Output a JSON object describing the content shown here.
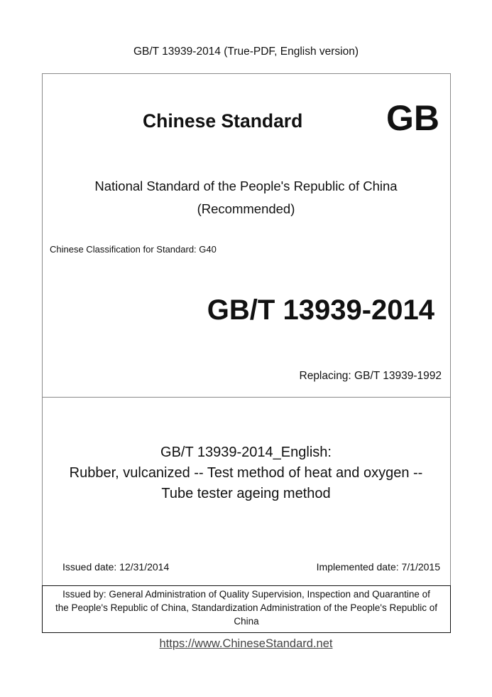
{
  "header": "GB/T 13939-2014 (True-PDF, English version)",
  "cover": {
    "brand": "Chinese Standard",
    "brand_mark": "GB",
    "national_line1": "National Standard of the People's Republic of China",
    "national_line2": "(Recommended)",
    "classification": "Chinese Classification for Standard: G40",
    "standard_number": "GB/T 13939-2014",
    "replacing": "Replacing: GB/T 13939-1992",
    "title_line1": "GB/T 13939-2014_English:",
    "title_line2": "Rubber, vulcanized -- Test method of heat and oxygen --",
    "title_line3": "Tube tester ageing method",
    "issued_date": "Issued date: 12/31/2014",
    "implemented_date": "Implemented date: 7/1/2015",
    "issuer_line1": "Issued by: General Administration of Quality Supervision, Inspection and Quarantine of",
    "issuer_line2": "the People's Republic of China, Standardization Administration of the People's Republic of",
    "issuer_line3": "China"
  },
  "footer_link": "https://www.ChineseStandard.net"
}
